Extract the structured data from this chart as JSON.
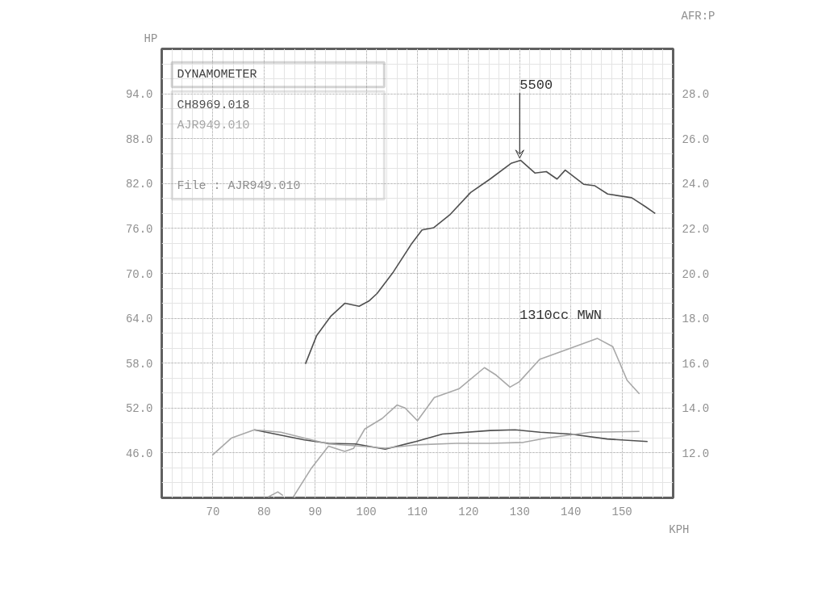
{
  "chart_data": {
    "type": "line",
    "legend_title": "DYNAMOMETER",
    "legend": "top left",
    "grid": true,
    "xlabel": "KPH",
    "ylabel": "HP",
    "y2label": "AFR:P",
    "xlim": [
      60,
      160
    ],
    "xticks": [
      70,
      80,
      90,
      100,
      110,
      120,
      130,
      140,
      150
    ],
    "ylim": [
      40,
      100
    ],
    "yticks": [
      {
        "value": 46,
        "label": "46.0"
      },
      {
        "value": 52,
        "label": "52.0"
      },
      {
        "value": 58,
        "label": "58.0"
      },
      {
        "value": 64,
        "label": "64.0"
      },
      {
        "value": 70,
        "label": "70.0"
      },
      {
        "value": 76,
        "label": "76.0"
      },
      {
        "value": 82,
        "label": "82.0"
      },
      {
        "value": 88,
        "label": "88.0"
      },
      {
        "value": 94,
        "label": "94.0"
      }
    ],
    "y2lim": [
      10,
      30
    ],
    "y2ticks": [
      {
        "value": 12,
        "label": "12.0"
      },
      {
        "value": 14,
        "label": "14.0"
      },
      {
        "value": 16,
        "label": "16.0"
      },
      {
        "value": 18,
        "label": "18.0"
      },
      {
        "value": 20,
        "label": "20.0"
      },
      {
        "value": 22,
        "label": "22.0"
      },
      {
        "value": 24,
        "label": "24.0"
      },
      {
        "value": 26,
        "label": "26.0"
      },
      {
        "value": 28,
        "label": "28.0"
      }
    ],
    "series": [
      {
        "name": "CH8969.018",
        "color": "#505050",
        "x": [
          88.1,
          90.3,
          93.1,
          95.8,
          98.6,
          100.5,
          102.1,
          105.3,
          108.9,
          110.9,
          113.2,
          116.3,
          120.4,
          124.2,
          128.3,
          130.2,
          133.0,
          135.2,
          137.3,
          138.9,
          142.5,
          144.7,
          147.2,
          151.9,
          154.6,
          156.5
        ],
        "values": [
          57.9,
          61.7,
          64.3,
          66.0,
          65.6,
          66.3,
          67.3,
          70.2,
          74.0,
          75.8,
          76.1,
          77.8,
          80.8,
          82.6,
          84.7,
          85.1,
          83.4,
          83.6,
          82.6,
          83.8,
          81.9,
          81.7,
          80.6,
          80.1,
          78.9,
          78.0
        ]
      },
      {
        "name": "AJR949.010",
        "color": "#a8a8a8",
        "x": [
          80.8,
          82.7,
          83.7,
          84.7,
          85.7,
          89.3,
          92.6,
          95.8,
          97.5,
          99.7,
          103.1,
          106.0,
          107.6,
          110.0,
          113.3,
          118.2,
          123.1,
          125.4,
          128.1,
          129.9,
          133.9,
          139.9,
          145.2,
          148.2,
          151.0,
          153.4
        ],
        "values": [
          40.1,
          40.8,
          40.3,
          null,
          40.1,
          44.0,
          46.9,
          46.2,
          46.6,
          49.2,
          50.6,
          52.4,
          52.0,
          50.3,
          53.4,
          54.6,
          57.4,
          56.4,
          54.8,
          55.5,
          58.5,
          60.0,
          61.3,
          60.2,
          55.7,
          53.9
        ]
      },
      {
        "color": "#505050",
        "axis": "y2",
        "x": [
          78.1,
          87.9,
          92.6,
          97.9,
          103.7,
          109.7,
          114.9,
          124.2,
          129.1,
          134.0,
          139.9,
          147.1,
          155.0
        ],
        "values": [
          13.03,
          12.58,
          12.43,
          12.4,
          12.17,
          12.51,
          12.84,
          13.0,
          13.03,
          12.92,
          12.84,
          12.62,
          12.51
        ]
      },
      {
        "color": "#a8a8a8",
        "axis": "y2",
        "x": [
          69.9,
          73.6,
          78.1,
          83.3,
          87.9,
          92.6,
          97.9,
          103.7,
          109.7,
          117.6,
          124.2,
          130.7,
          135.2,
          143.9,
          153.4
        ],
        "values": [
          11.9,
          12.66,
          13.03,
          12.92,
          12.66,
          12.4,
          12.32,
          12.21,
          12.36,
          12.43,
          12.43,
          12.47,
          12.66,
          12.92,
          12.96
        ]
      }
    ],
    "annotations": [
      "File      : AJR949.010",
      {
        "text": "5500",
        "x": 130,
        "y": 85.1
      },
      "1310cc MWN"
    ]
  }
}
